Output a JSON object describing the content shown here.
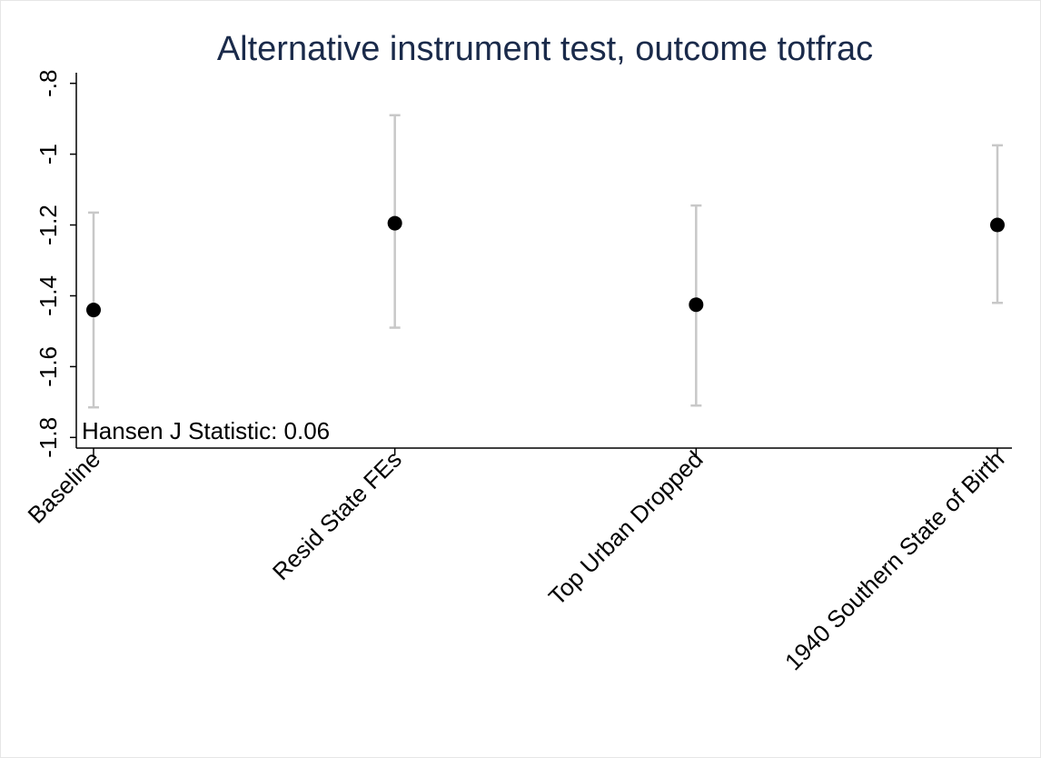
{
  "chart_data": {
    "type": "scatter",
    "title": "Alternative instrument test, outcome totfrac",
    "xlabel": "",
    "ylabel": "",
    "categories": [
      "Baseline",
      "Resid State FEs",
      "Top Urban Dropped",
      "1940 Southern State of Birth"
    ],
    "series": [
      {
        "estimates": [
          -1.44,
          -1.195,
          -1.425,
          -1.2
        ],
        "ci_low": [
          -1.715,
          -1.49,
          -1.71,
          -1.42
        ],
        "ci_high": [
          -1.165,
          -0.89,
          -1.145,
          -0.975
        ]
      }
    ],
    "ylim": [
      -1.83,
      -0.77
    ],
    "yticks": [
      -1.8,
      -1.6,
      -1.4,
      -1.2,
      -1,
      -0.8
    ],
    "ytick_labels": [
      "-1.8",
      "-1.6",
      "-1.4",
      "-1.2",
      "-1",
      "-.8"
    ],
    "grid": false,
    "annotation": "Hansen J Statistic: 0.06",
    "colors": {
      "points": "#000000",
      "ci": "#c8c8c8",
      "axis": "#000000",
      "title": "#1a2a4a"
    }
  }
}
